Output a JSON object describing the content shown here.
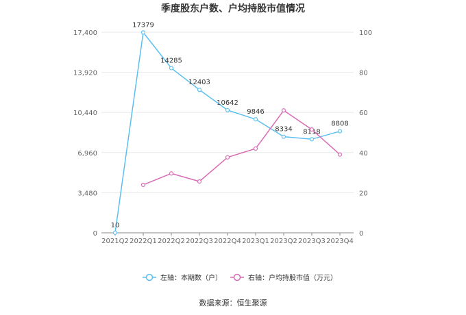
{
  "colors": {
    "left_series": "#5bc0f0",
    "right_series": "#d86bb4",
    "grid": "#e8e8e8",
    "axis": "#888888"
  },
  "chart_data": {
    "type": "line",
    "title": "季度股东户数、户均持股市值情况",
    "categories": [
      "2021Q2",
      "2022Q1",
      "2022Q2",
      "2022Q3",
      "2022Q4",
      "2023Q1",
      "2023Q2",
      "2023Q3",
      "2023Q4"
    ],
    "left_axis": {
      "ylim": [
        0,
        17400
      ],
      "ticks": [
        0,
        3480,
        6960,
        10440,
        13920,
        17400
      ],
      "tick_labels": [
        "0",
        "3,480",
        "6,960",
        "10,440",
        "13,920",
        "17,400"
      ]
    },
    "right_axis": {
      "ylim": [
        0,
        100
      ],
      "ticks": [
        0,
        20,
        40,
        60,
        80,
        100
      ],
      "tick_labels": [
        "0",
        "20",
        "40",
        "60",
        "80",
        "100"
      ]
    },
    "series": [
      {
        "name": "左轴：本期数（户）",
        "axis": "left",
        "values": [
          10,
          17379,
          14285,
          12403,
          10642,
          9846,
          8334,
          8118,
          8808
        ],
        "labels": [
          "10",
          "17379",
          "14285",
          "12403",
          "10642",
          "9846",
          "8334",
          "8118",
          "8808"
        ]
      },
      {
        "name": "右轴：户均持股市值（万元）",
        "axis": "right",
        "values": [
          null,
          23.9,
          29.6,
          25.6,
          37.6,
          42.0,
          61.0,
          51.5,
          39.0
        ]
      }
    ],
    "grid": true,
    "legend_position": "bottom"
  },
  "source": "数据来源：恒生聚源"
}
